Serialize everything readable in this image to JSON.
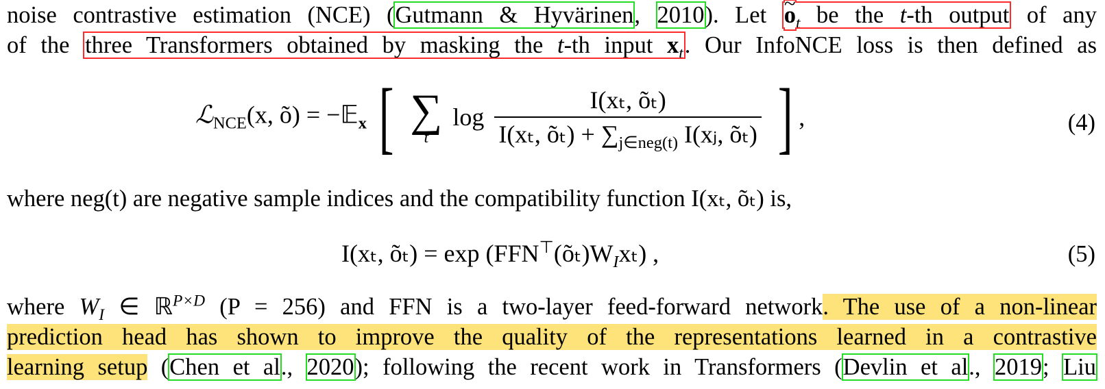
{
  "paragraph1": {
    "line1": {
      "pre": "noise contrastive estimation (NCE) (",
      "cite_author": "Gutmann & Hyvärinen",
      "cite_sep": ", ",
      "cite_year": "2010",
      "post": "). Let ",
      "o_var": "o",
      "t_sub": "t",
      "box_text": " be the ",
      "t_ital": "t",
      "box_text2": "-th output",
      "tail": " of any"
    },
    "line2": {
      "pre": "of the ",
      "box_text": "three Transformers obtained by masking the ",
      "t_ital": "t",
      "box_text2": "-th input ",
      "x_var": "x",
      "t_sub": "t",
      "tail": ". Our InfoNCE loss is then defined as"
    }
  },
  "equation4": {
    "lhs": "ℒ",
    "lhs_sub": "NCE",
    "lhs_args": "(x, õ) = −𝔼",
    "expect_sub": "x",
    "sum_index": "t",
    "log": "log",
    "numerator": "I(xₜ, õₜ)",
    "denominator": "I(xₜ, õₜ) + ∑",
    "den_sub": "j∈neg(t)",
    "den_tail": " I(xⱼ, õₜ)",
    "trailing": ",",
    "number": "(4)"
  },
  "paragraph2": {
    "line1": "where neg(t) are negative sample indices and the compatibility function I(xₜ, õₜ) is,"
  },
  "equation5": {
    "body": "I(xₜ, õₜ) = exp (FFN",
    "sup": "⊤",
    "body2": "(õₜ)W",
    "sub": "I",
    "body3": "xₜ) ,",
    "number": "(5)"
  },
  "paragraph3": {
    "line1_pre": "where ",
    "w_var": "W",
    "w_sub": "I",
    "line1_mid": " ∈ ℝ",
    "r_sup": "P×D",
    "line1_mid2": " (P = 256) and FFN is a two-layer feed-forward network",
    "line1_hl": ". The use of a non-linear",
    "line2_hl": "prediction head has shown to improve the quality of the representations learned in a contrastive",
    "line3_hl": "learning setup",
    "line3_a": " (",
    "cite1_author": "Chen et al",
    "cite1_sep": "., ",
    "cite1_year": "2020",
    "line3_b": "); following the recent work in Transformers (",
    "cite2_author": "Devlin et al",
    "cite2_sep": "., ",
    "cite2_year": "2019",
    "line3_c": "; ",
    "cite3_author": "Liu"
  },
  "colors": {
    "highlight": "#fde37a",
    "citation_box": "#22dd22",
    "annotation_box": "#ff2a2a"
  }
}
